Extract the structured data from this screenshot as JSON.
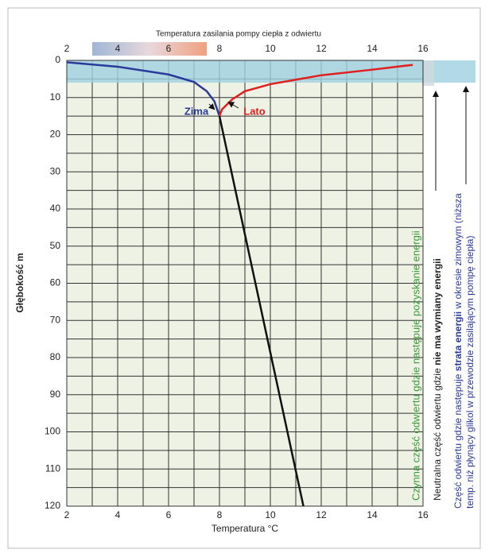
{
  "chart_data": {
    "type": "line",
    "top_title": "Temperatura zasilania pompy ciepła z odwiertu",
    "xlabel": "Temperatura °C",
    "ylabel": "Głębokość m",
    "xlim": [
      2,
      16
    ],
    "ylim": [
      0,
      120
    ],
    "xticks": [
      2,
      4,
      6,
      8,
      10,
      12,
      14,
      16
    ],
    "yticks": [
      0,
      10,
      20,
      30,
      40,
      50,
      60,
      70,
      80,
      90,
      100,
      110,
      120
    ],
    "y_inverted": true,
    "grid": true,
    "series": [
      {
        "name": "Zima",
        "color": "#2b3a9a",
        "x": [
          2.0,
          4.0,
          6.0,
          7.0,
          7.5,
          7.8,
          8.0
        ],
        "values": [
          0.5,
          1.7,
          3.8,
          5.8,
          8.3,
          11,
          15
        ]
      },
      {
        "name": "Lato",
        "color": "#e02020",
        "x": [
          15.6,
          14.0,
          12.0,
          10.0,
          9.0,
          8.5,
          8.1,
          8.0
        ],
        "values": [
          1.2,
          2.5,
          4.0,
          6.4,
          8.3,
          10.5,
          13.2,
          15
        ]
      },
      {
        "name": null,
        "color": "#111111",
        "x": [
          8.0,
          11.3
        ],
        "values": [
          15,
          120
        ]
      }
    ],
    "zone_labels": {
      "active": "Czynna część odwiertu gdzie następuje pozyskanie energii",
      "neutral_a": "Neutralna część odwiertu gdzie ",
      "neutral_b": "nie ma wymiany energii",
      "loss_a": "Część odwiertu gdzie następuje ",
      "loss_b": "strata energii",
      "loss_c": " w okresie zimowym (niższa",
      "loss_d": "temp. niż płynący glikol w przewodzie zasilającym pompę ciepła)"
    }
  }
}
